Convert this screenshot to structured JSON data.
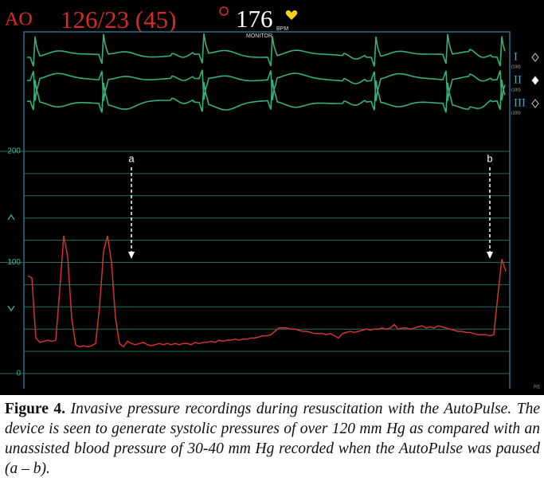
{
  "monitor": {
    "channel": "AO",
    "pressure": "126/23 (45)",
    "heart_rate": "176",
    "hr_unit": "BPM",
    "hr_source": "MONITOR",
    "leads": [
      {
        "name": "I",
        "scale": "(100)"
      },
      {
        "name": "II",
        "scale": "(100)"
      },
      {
        "name": "III",
        "scale": "(100)"
      }
    ],
    "corner": "RE"
  },
  "chart_data": {
    "type": "line",
    "categories": [
      null,
      null,
      null,
      null,
      null,
      null,
      null,
      null,
      null,
      null,
      null,
      null,
      null,
      null,
      null,
      null,
      null,
      null,
      null,
      null,
      null,
      null,
      null,
      null,
      null,
      null,
      null,
      null,
      null,
      null,
      null,
      null,
      null,
      null,
      null,
      null,
      null,
      null,
      null,
      null,
      null,
      null,
      null,
      null,
      null,
      null,
      null,
      null,
      null,
      null,
      null,
      null,
      null,
      null,
      null,
      null,
      null,
      null,
      null,
      null,
      null,
      null,
      null,
      null,
      null,
      null,
      null,
      null,
      null,
      null,
      null,
      null,
      null,
      null,
      null,
      null,
      null,
      null,
      null,
      null,
      null,
      null,
      null,
      null,
      null,
      null,
      null,
      null,
      null,
      null,
      null,
      null,
      null,
      null,
      null,
      null,
      null,
      null,
      null,
      null,
      null,
      null,
      null,
      null,
      null,
      null,
      null,
      null,
      null,
      null,
      null,
      null,
      null,
      null,
      null,
      null,
      null,
      null,
      null,
      null,
      null
    ],
    "series": [
      {
        "color": "#d0342c",
        "values": [
          88,
          86,
          32,
          28,
          29,
          30,
          29,
          30,
          75,
          124,
          105,
          50,
          26,
          24,
          25,
          24,
          25,
          27,
          60,
          110,
          124,
          100,
          50,
          27,
          24,
          29,
          27,
          26,
          27,
          28,
          26,
          25,
          26,
          27,
          26,
          27,
          26,
          27,
          26,
          27,
          27,
          26,
          28,
          27,
          28,
          28,
          29,
          28,
          30,
          29,
          30,
          30,
          31,
          30,
          31,
          31,
          32,
          32,
          33,
          34,
          34,
          35,
          38,
          41,
          41,
          41,
          40,
          40,
          39,
          38,
          38,
          37,
          36,
          36,
          36,
          35,
          36,
          34,
          32,
          36,
          37,
          38,
          37,
          38,
          39,
          40,
          39,
          40,
          40,
          41,
          40,
          41,
          44,
          40,
          41,
          41,
          40,
          41,
          42,
          43,
          41,
          42,
          41,
          43,
          42,
          41,
          40,
          39,
          38,
          38,
          37,
          37,
          36,
          35,
          35,
          35,
          34,
          35,
          70,
          103,
          92
        ]
      }
    ],
    "ylim": [
      0,
      200
    ],
    "yticks": [
      0,
      100,
      200
    ],
    "grid_lines": [
      0,
      20,
      40,
      60,
      80,
      100,
      120,
      140,
      160,
      180,
      200
    ],
    "grid_color": "#1e6f62",
    "annotations": [
      {
        "label": "a",
        "index": 26
      },
      {
        "label": "b",
        "index": 116
      }
    ]
  },
  "caption": {
    "label": "Figure 4.",
    "text": "Invasive pressure recordings during resuscitation with the AutoPulse. The device is seen to generate systolic pressures of over 120 mm Hg as compared with an unassisted blood pressure of 30-40 mm Hg recorded when the AutoPulse was paused (a – b)."
  }
}
